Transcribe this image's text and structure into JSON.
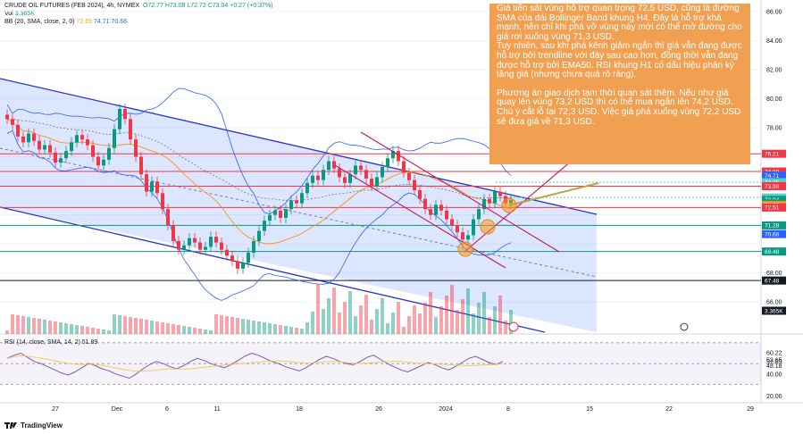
{
  "header": {
    "symbol_line": "CRUDE OIL FUTURES (FEB 2024), 4h, NYMEX",
    "ohlc": "O72.77 H73.08 L72.72 C73.04 +0.27 (+0.37%)",
    "vol_label": "Vol",
    "vol_value": "3.365K",
    "bb_label": "BB (20, SMA, close, 2, 0)",
    "bb_values": [
      "72.69",
      "74.71",
      "70.68"
    ]
  },
  "annotation": {
    "paragraphs": [
      "Giá tiến sát vùng hỗ trợ quan trọng 72,5 USD, cũng là đường SMA của dải Bollinger Band khung H4. Đây là hỗ trợ khá mạnh, nên chỉ khi phá vỡ vùng này mới có thể mở đường cho giá rơi xuống vùng 71,3 USD.\nTuy nhiên, sau khi phá kênh giảm ngắn thì giá vẫn đang được hỗ trợ bởi trendline với đáy sau cao hơn, đồng thời vẫn đang được hỗ trợ bởi EMA50. RSI khung H1 có dấu hiệu phân kỳ tăng giá (nhưng chưa quá rõ ràng).",
      "Phương án giao dịch tạm thời quan sát thêm. Nếu như giá quay lên vùng 73,2 USD thì có thể mua ngắn lên 74,2 USD. Chú ý cắt lỗ tại 72,3 USD. Việc giá phá xuống vùng 72,2 USD sẽ đưa giá về 71,3 USD."
    ],
    "color": "#f1a051"
  },
  "price_scale": [
    "86.00",
    "84.00",
    "82.00",
    "80.00",
    "78.00",
    "68.00",
    "66.00"
  ],
  "price_tags": [
    {
      "label": "76.21",
      "price": 76.21,
      "bg": "#f23645",
      "fg": "#ffffff"
    },
    {
      "label": "74.99",
      "price": 74.99,
      "bg": "#f23645",
      "fg": "#ffffff"
    },
    {
      "label": "74.71",
      "price": 74.71,
      "bg": "#2962ff",
      "fg": "#ffffff"
    },
    {
      "label": "74.25",
      "price": 74.25,
      "bg": "#5fcfc3",
      "fg": "#ffffff"
    },
    {
      "label": "73.98",
      "price": 73.98,
      "bg": "#f23645",
      "fg": "#ffffff"
    },
    {
      "label": "73.20",
      "price": 73.2,
      "bg": "#5fcfc3",
      "fg": "#ffffff"
    },
    {
      "label": "73.04",
      "price": 73.04,
      "bg": "#089981",
      "fg": "#ffffff"
    },
    {
      "label": "03:05:33",
      "price": 72.78,
      "bg": "#089981",
      "fg": "#ffffff"
    },
    {
      "label": "72.69",
      "price": 72.69,
      "bg": "#f7931a",
      "fg": "#ffffff"
    },
    {
      "label": "72.51",
      "price": 72.51,
      "bg": "#f23645",
      "fg": "#ffffff"
    },
    {
      "label": "71.28",
      "price": 71.28,
      "bg": "#089981",
      "fg": "#ffffff"
    },
    {
      "label": "70.68",
      "price": 70.68,
      "bg": "#2962ff",
      "fg": "#ffffff"
    },
    {
      "label": "69.48",
      "price": 69.48,
      "bg": "#089981",
      "fg": "#ffffff"
    },
    {
      "label": "67.48",
      "price": 67.48,
      "bg": "#131722",
      "fg": "#ffffff"
    },
    {
      "label": "3.365K",
      "price": 65.4,
      "bg": "#131722",
      "fg": "#ffffff"
    }
  ],
  "h_levels": [
    {
      "price": 76.21,
      "color": "#f23645"
    },
    {
      "price": 74.99,
      "color": "#f23645"
    },
    {
      "price": 73.98,
      "color": "#f23645"
    },
    {
      "price": 72.51,
      "color": "#f23645"
    },
    {
      "price": 71.28,
      "color": "#089981"
    },
    {
      "price": 69.48,
      "color": "#089981"
    },
    {
      "price": 67.48,
      "color": "#131722"
    }
  ],
  "rsi": {
    "label": "RSI (14, close, SMA, 14, 2)",
    "value_label": "51.89",
    "scale": [
      "60.22",
      "53.65",
      "51.89",
      "48.18",
      "40.00",
      "20.00"
    ],
    "levels": [
      70,
      50,
      30
    ],
    "series": [
      55,
      58,
      60,
      56,
      52,
      50,
      47,
      44,
      41,
      39,
      42,
      46,
      50,
      48,
      45,
      43,
      40,
      38,
      36,
      40,
      45,
      49,
      52,
      50,
      47,
      45,
      48,
      52,
      55,
      53,
      50,
      48,
      46,
      49,
      53,
      57,
      60,
      58,
      55,
      52,
      50,
      47,
      45,
      43,
      46,
      50,
      54,
      57,
      55,
      52,
      50,
      49,
      52,
      56,
      58,
      54,
      50,
      47,
      44,
      42,
      45,
      48,
      51,
      49,
      46,
      44,
      47,
      51,
      55,
      57,
      54,
      51,
      49,
      52
    ]
  },
  "time_axis": [
    "27",
    "Dec",
    "6",
    "11",
    "18",
    "26",
    "2024",
    "8",
    "15",
    "22",
    "29"
  ],
  "chart_data": {
    "type": "candlestick",
    "title": "CRUDE OIL FUTURES (FEB 2024), 4h, NYMEX",
    "ylim": [
      63.8,
      86.8
    ],
    "closes": [
      78.6,
      78.2,
      77.4,
      77.0,
      77.6,
      77.1,
      76.5,
      76.8,
      76.3,
      75.6,
      75.9,
      76.4,
      77.0,
      77.5,
      77.2,
      76.8,
      76.0,
      75.4,
      75.8,
      76.6,
      77.9,
      79.3,
      78.6,
      77.2,
      76.0,
      74.8,
      73.6,
      74.3,
      73.5,
      72.4,
      71.3,
      70.2,
      69.6,
      69.9,
      70.4,
      70.1,
      69.6,
      69.8,
      70.5,
      70.1,
      69.6,
      69.2,
      68.8,
      68.3,
      68.7,
      69.4,
      70.2,
      70.9,
      71.6,
      72.0,
      72.3,
      71.8,
      72.4,
      73.0,
      72.8,
      73.5,
      74.2,
      74.7,
      74.4,
      75.1,
      75.7,
      75.2,
      74.6,
      74.2,
      74.8,
      75.4,
      75.1,
      74.5,
      74.0,
      74.6,
      75.3,
      75.9,
      76.4,
      75.7,
      74.9,
      74.4,
      73.7,
      73.1,
      72.4,
      72.0,
      72.7,
      72.3,
      71.7,
      71.3,
      70.8,
      70.3,
      70.6,
      71.7,
      72.4,
      73.1,
      72.8,
      73.6,
      73.3,
      72.8,
      73.04
    ],
    "volume_spikes": "approximate"
  }
}
